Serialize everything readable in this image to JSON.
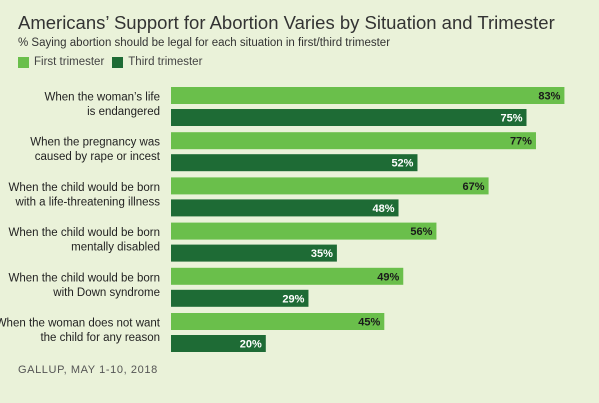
{
  "chart_data": {
    "type": "bar",
    "orientation": "horizontal",
    "title": "Americans’ Support for Abortion Varies by Situation and Trimester",
    "subtitle": "% Saying abortion should be legal for each situation in first/third trimester",
    "categories": [
      [
        "When the woman’s life",
        "is endangered"
      ],
      [
        "When the pregnancy was",
        "caused by rape or incest"
      ],
      [
        "When the child would be born",
        "with a life-threatening illness"
      ],
      [
        "When the child would be born",
        "mentally disabled"
      ],
      [
        "When the child would be born",
        "with Down syndrome"
      ],
      [
        "When the woman does not want",
        "the child for any reason"
      ]
    ],
    "series": [
      {
        "name": "First trimester",
        "color": "#6abf4b",
        "values": [
          83,
          77,
          67,
          56,
          49,
          45
        ]
      },
      {
        "name": "Third trimester",
        "color": "#1e6b35",
        "values": [
          75,
          52,
          48,
          35,
          29,
          20
        ]
      }
    ],
    "value_suffix": "%",
    "xlim": [
      0,
      100
    ],
    "grid": false,
    "legend_position": "top-left"
  },
  "source": "GALLUP, MAY 1-10, 2018"
}
